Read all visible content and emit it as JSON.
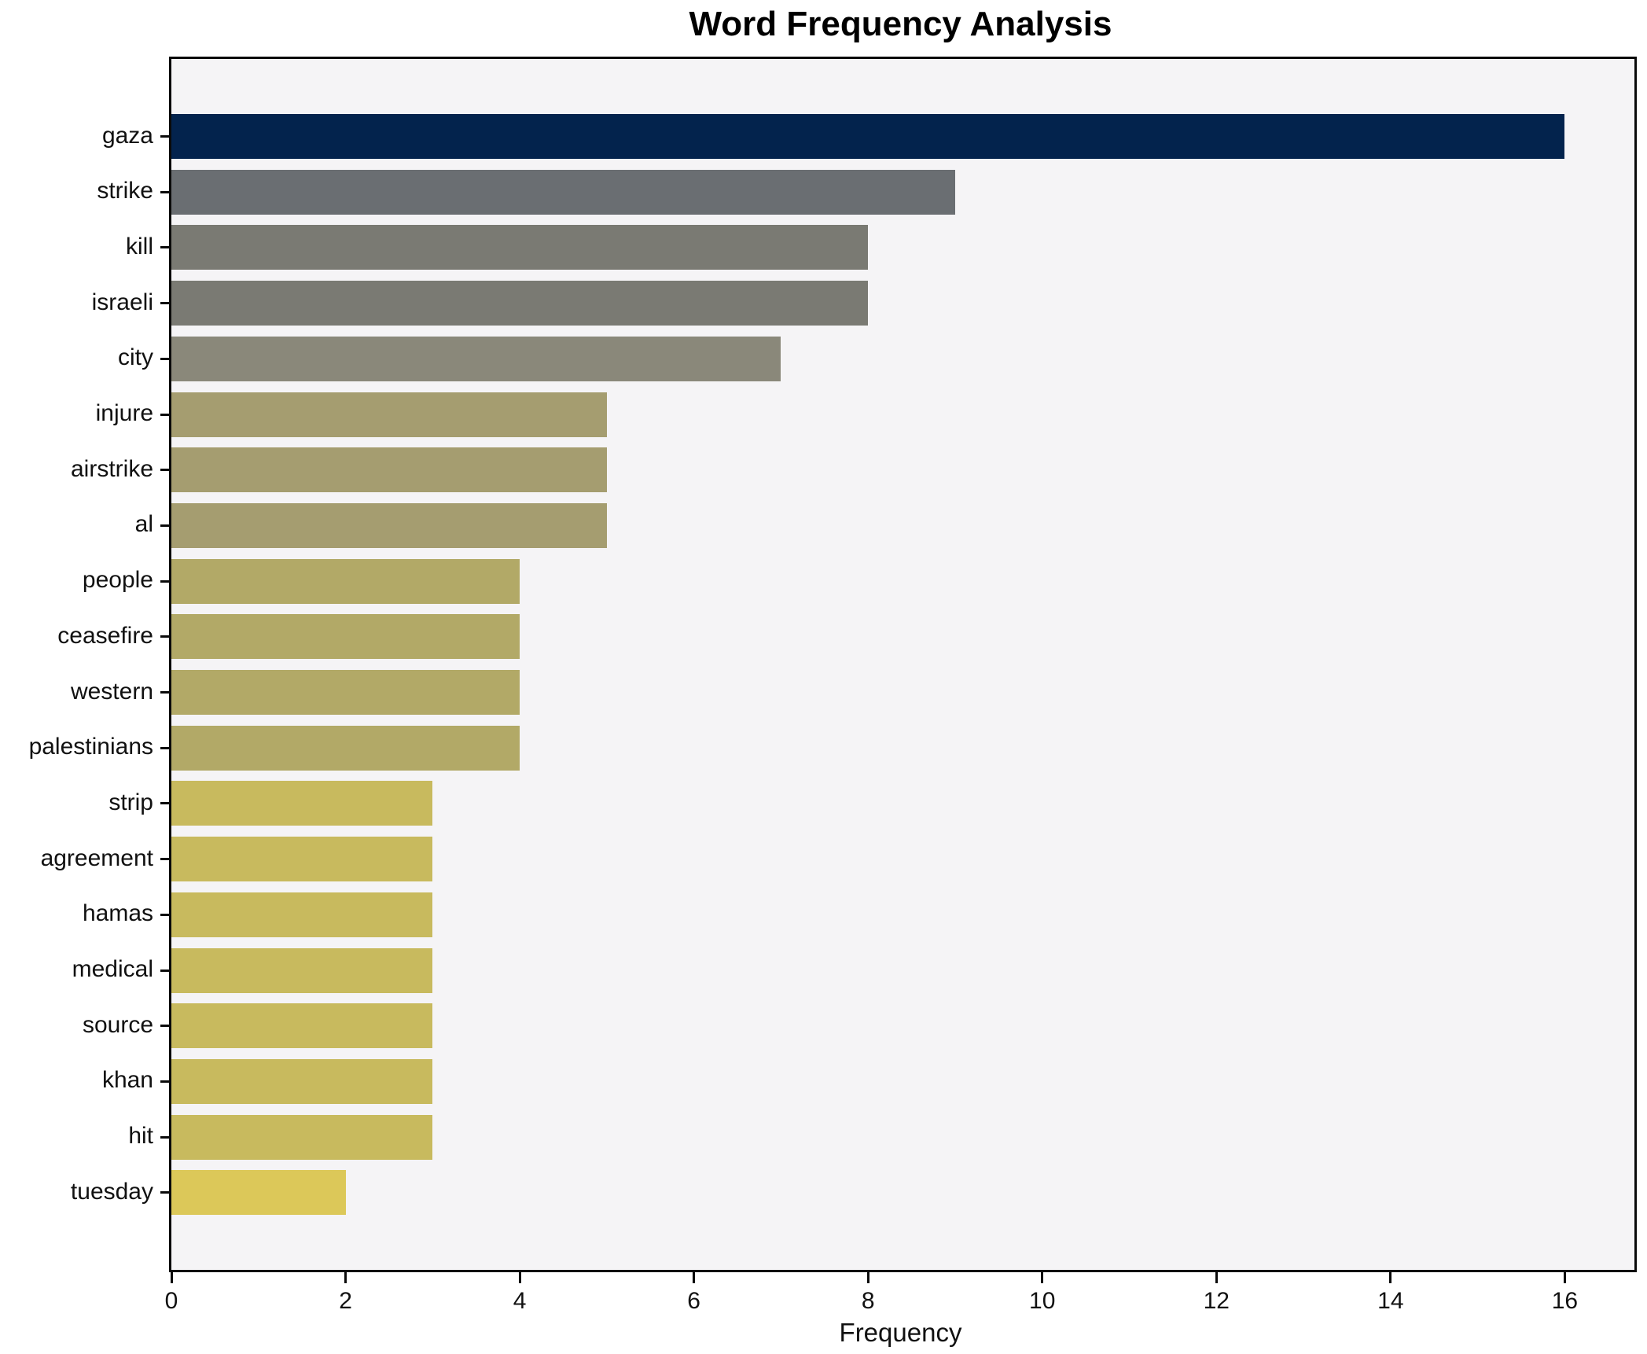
{
  "chart_data": {
    "type": "bar",
    "orientation": "horizontal",
    "title": "Word Frequency Analysis",
    "xlabel": "Frequency",
    "ylabel": "",
    "categories": [
      "gaza",
      "strike",
      "kill",
      "israeli",
      "city",
      "injure",
      "airstrike",
      "al",
      "people",
      "ceasefire",
      "western",
      "palestinians",
      "strip",
      "agreement",
      "hamas",
      "medical",
      "source",
      "khan",
      "hit",
      "tuesday"
    ],
    "values": [
      16,
      9,
      8,
      8,
      7,
      5,
      5,
      5,
      4,
      4,
      4,
      4,
      3,
      3,
      3,
      3,
      3,
      3,
      3,
      2
    ],
    "bar_colors": [
      "#03234d",
      "#6a6e72",
      "#7a7a73",
      "#7a7a73",
      "#8a887a",
      "#a59d70",
      "#a59d70",
      "#a59d70",
      "#b2a967",
      "#b2a967",
      "#b2a967",
      "#b2a967",
      "#c8ba5e",
      "#c8ba5e",
      "#c8ba5e",
      "#c8ba5e",
      "#c8ba5e",
      "#c8ba5e",
      "#c8ba5e",
      "#dcc859"
    ],
    "xlim": [
      0,
      16.8
    ],
    "xticks": [
      0,
      2,
      4,
      6,
      8,
      10,
      12,
      14,
      16
    ],
    "grid": false,
    "legend": null,
    "plot_background": "#f5f4f6",
    "spine_color": "#0a0a0a"
  }
}
